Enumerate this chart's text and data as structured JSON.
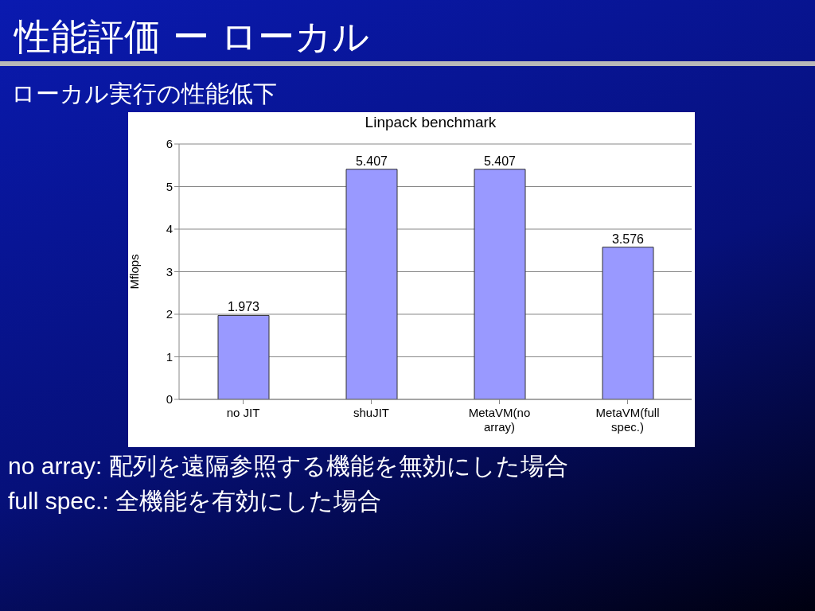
{
  "chart_data": {
    "type": "bar",
    "title": "Linpack benchmark",
    "ylabel": "Mflops",
    "categories": [
      "no JIT",
      "shuJIT",
      "MetaVM(no array)",
      "MetaVM(full spec.)"
    ],
    "values": [
      1.973,
      5.407,
      5.407,
      3.576
    ],
    "color": "#9999ff",
    "ylim": [
      0,
      6
    ],
    "yticks": [
      0,
      1,
      2,
      3,
      4,
      5,
      6
    ],
    "grid": "y",
    "data_labels": true,
    "annotations": [
      "性能評価 ー ローカル",
      "ローカル実行の性能低下",
      "no array: 配列を遠隔参照する機能を無効にした場合",
      "full spec.: 全機能を有効にした場合"
    ]
  }
}
